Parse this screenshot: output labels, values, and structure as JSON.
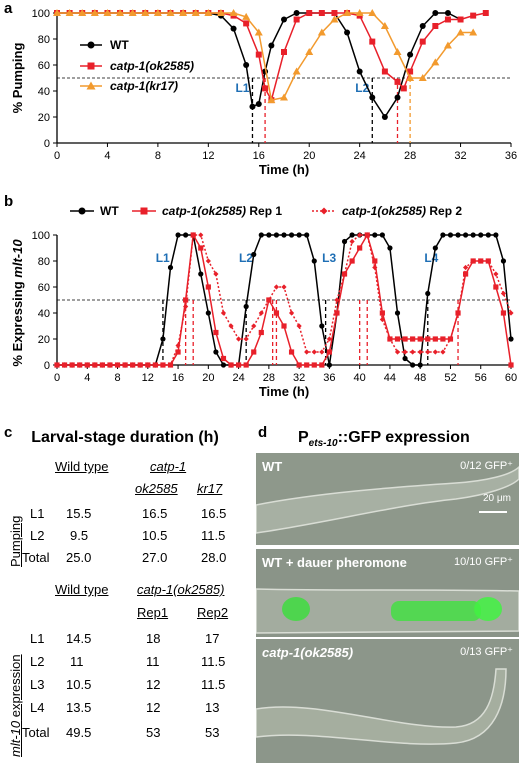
{
  "panels": {
    "a": "a",
    "b": "b",
    "c": "c",
    "d": "d"
  },
  "chart_data": [
    {
      "type": "line",
      "panel": "a",
      "xlabel": "Time (h)",
      "ylabel": "% Pumping",
      "xlim": [
        0,
        36
      ],
      "ylim": [
        0,
        100
      ],
      "xticks": [
        0,
        4,
        8,
        12,
        16,
        20,
        24,
        28,
        32,
        36
      ],
      "yticks": [
        0,
        20,
        40,
        60,
        80,
        100
      ],
      "reference_line": 50,
      "legend": "top-left",
      "series": [
        {
          "name": "WT",
          "color": "#000000",
          "marker": "circle",
          "x": [
            0,
            1,
            2,
            3,
            4,
            5,
            6,
            7,
            8,
            9,
            10,
            11,
            12,
            13,
            14,
            15,
            15.5,
            16,
            16.5,
            17,
            18,
            19,
            20,
            21,
            22,
            23,
            24,
            25,
            26,
            27,
            28,
            29,
            30,
            31,
            32
          ],
          "y": [
            100,
            100,
            100,
            100,
            100,
            100,
            100,
            100,
            100,
            100,
            100,
            100,
            100,
            98,
            88,
            60,
            28,
            30,
            55,
            75,
            95,
            100,
            100,
            100,
            100,
            85,
            55,
            35,
            20,
            35,
            68,
            90,
            100,
            100,
            95
          ]
        },
        {
          "name": "catp-1(ok2585)",
          "color": "#e8202a",
          "marker": "square",
          "x": [
            0,
            1,
            2,
            3,
            4,
            5,
            6,
            7,
            8,
            9,
            10,
            11,
            12,
            13,
            14,
            15,
            16,
            16.5,
            17,
            18,
            19,
            20,
            21,
            22,
            23,
            24,
            25,
            26,
            27,
            27.5,
            28,
            29,
            30,
            31,
            32,
            33,
            34
          ],
          "y": [
            100,
            100,
            100,
            100,
            100,
            100,
            100,
            100,
            100,
            100,
            100,
            100,
            100,
            100,
            98,
            92,
            68,
            42,
            33,
            70,
            95,
            100,
            100,
            100,
            100,
            98,
            78,
            55,
            47,
            42,
            55,
            78,
            90,
            95,
            95,
            98,
            100
          ]
        },
        {
          "name": "catp-1(kr17)",
          "color": "#f29a2e",
          "marker": "triangle",
          "x": [
            0,
            1,
            2,
            3,
            4,
            5,
            6,
            7,
            8,
            9,
            10,
            11,
            12,
            13,
            14,
            15,
            16,
            17,
            18,
            19,
            20,
            21,
            22,
            23,
            24,
            25,
            26,
            27,
            28,
            29,
            30,
            31,
            32,
            33
          ],
          "y": [
            100,
            100,
            100,
            100,
            100,
            100,
            100,
            100,
            100,
            100,
            100,
            100,
            100,
            100,
            100,
            97,
            85,
            33,
            35,
            55,
            70,
            85,
            95,
            100,
            100,
            100,
            90,
            70,
            50,
            50,
            62,
            75,
            85,
            85
          ]
        }
      ],
      "annotations": [
        {
          "text": "L1",
          "x": 15.5,
          "color": "#1f6fb5"
        },
        {
          "text": "L2",
          "x": 25,
          "color": "#1f6fb5"
        }
      ],
      "dashed_markers": [
        {
          "x": 15.5,
          "color": "#000000"
        },
        {
          "x": 16.5,
          "color": "#e8202a"
        },
        {
          "x": 25,
          "color": "#000000"
        },
        {
          "x": 27,
          "color": "#e8202a"
        },
        {
          "x": 28,
          "color": "#f29a2e"
        }
      ]
    },
    {
      "type": "line",
      "panel": "b",
      "xlabel": "Time (h)",
      "ylabel_prefix": "% Expressing ",
      "ylabel_gene": "mlt-10",
      "xlim": [
        0,
        60
      ],
      "ylim": [
        0,
        100
      ],
      "xticks": [
        0,
        4,
        8,
        12,
        16,
        20,
        24,
        28,
        32,
        36,
        40,
        44,
        48,
        52,
        56,
        60
      ],
      "yticks": [
        0,
        20,
        40,
        60,
        80,
        100
      ],
      "reference_line": 50,
      "legend": "top",
      "series": [
        {
          "name": "WT",
          "color": "#000000",
          "marker": "circle",
          "dash": false,
          "x": [
            0,
            1,
            2,
            3,
            4,
            5,
            6,
            7,
            8,
            9,
            10,
            11,
            12,
            13,
            14,
            15,
            16,
            17,
            18,
            19,
            20,
            21,
            22,
            23,
            24,
            25,
            26,
            27,
            28,
            29,
            30,
            31,
            32,
            33,
            34,
            35,
            36,
            37,
            38,
            39,
            40,
            41,
            42,
            43,
            44,
            45,
            46,
            47,
            48,
            49,
            50,
            51,
            52,
            53,
            54,
            55,
            56,
            57,
            58,
            59,
            60
          ],
          "y": [
            0,
            0,
            0,
            0,
            0,
            0,
            0,
            0,
            0,
            0,
            0,
            0,
            0,
            0,
            20,
            75,
            100,
            100,
            100,
            70,
            40,
            10,
            0,
            0,
            0,
            45,
            85,
            100,
            100,
            100,
            100,
            100,
            100,
            100,
            80,
            30,
            0,
            40,
            95,
            100,
            100,
            100,
            100,
            100,
            90,
            40,
            5,
            0,
            0,
            55,
            90,
            100,
            100,
            100,
            100,
            100,
            100,
            100,
            100,
            80,
            20
          ]
        },
        {
          "name": "catp-1(ok2585) Rep 1",
          "color": "#e8202a",
          "marker": "square",
          "dash": false,
          "x": [
            0,
            1,
            2,
            3,
            4,
            5,
            6,
            7,
            8,
            9,
            10,
            11,
            12,
            13,
            14,
            15,
            16,
            17,
            18,
            19,
            20,
            21,
            22,
            23,
            24,
            25,
            26,
            27,
            28,
            29,
            30,
            31,
            32,
            33,
            34,
            35,
            36,
            37,
            38,
            39,
            40,
            41,
            42,
            43,
            44,
            45,
            46,
            47,
            48,
            49,
            50,
            51,
            52,
            53,
            54,
            55,
            56,
            57,
            58,
            59,
            60
          ],
          "y": [
            0,
            0,
            0,
            0,
            0,
            0,
            0,
            0,
            0,
            0,
            0,
            0,
            0,
            0,
            0,
            0,
            10,
            50,
            100,
            90,
            60,
            25,
            5,
            0,
            0,
            0,
            10,
            25,
            50,
            40,
            30,
            10,
            0,
            0,
            0,
            0,
            10,
            40,
            70,
            80,
            90,
            100,
            80,
            40,
            20,
            20,
            20,
            20,
            20,
            20,
            20,
            20,
            20,
            40,
            70,
            80,
            80,
            80,
            60,
            40,
            0
          ]
        },
        {
          "name": "catp-1(ok2585) Rep 2",
          "color": "#e8202a",
          "marker": "diamond",
          "dash": true,
          "x": [
            0,
            1,
            2,
            3,
            4,
            5,
            6,
            7,
            8,
            9,
            10,
            11,
            12,
            13,
            14,
            15,
            16,
            17,
            18,
            19,
            20,
            21,
            22,
            23,
            24,
            25,
            26,
            27,
            28,
            29,
            30,
            31,
            32,
            33,
            34,
            35,
            36,
            37,
            38,
            39,
            40,
            41,
            42,
            43,
            44,
            45,
            46,
            47,
            48,
            49,
            50,
            51,
            52,
            53,
            54,
            55,
            56,
            57,
            58,
            59,
            60
          ],
          "y": [
            0,
            0,
            0,
            0,
            0,
            0,
            0,
            0,
            0,
            0,
            0,
            0,
            0,
            0,
            0,
            0,
            15,
            45,
            100,
            100,
            80,
            70,
            40,
            30,
            20,
            20,
            30,
            40,
            50,
            60,
            60,
            40,
            30,
            10,
            10,
            10,
            20,
            50,
            70,
            95,
            100,
            100,
            75,
            35,
            20,
            10,
            10,
            10,
            10,
            10,
            10,
            10,
            20,
            40,
            75,
            80,
            80,
            80,
            70,
            55,
            40
          ]
        }
      ],
      "annotations": [
        {
          "text": "L1",
          "x": 14.5,
          "color": "#1f6fb5"
        },
        {
          "text": "L2",
          "x": 25.5,
          "color": "#1f6fb5"
        },
        {
          "text": "L3",
          "x": 36.5,
          "color": "#1f6fb5"
        },
        {
          "text": "L4",
          "x": 50,
          "color": "#1f6fb5"
        }
      ],
      "dashed_markers": [
        {
          "x": 14,
          "color": "#000000"
        },
        {
          "x": 18,
          "color": "#e8202a"
        },
        {
          "x": 17,
          "color": "#e8202a"
        },
        {
          "x": 25,
          "color": "#000000"
        },
        {
          "x": 29,
          "color": "#e8202a"
        },
        {
          "x": 28.5,
          "color": "#e8202a"
        },
        {
          "x": 35.5,
          "color": "#000000"
        },
        {
          "x": 41,
          "color": "#e8202a"
        },
        {
          "x": 40,
          "color": "#e8202a"
        },
        {
          "x": 49,
          "color": "#000000"
        },
        {
          "x": 53,
          "color": "#e8202a"
        }
      ]
    },
    {
      "type": "table",
      "panel": "c",
      "title": "Larval-stage duration (h)",
      "pumping": {
        "side_label": "Pumping",
        "header_wt": "Wild type",
        "header_group": "catp-1",
        "header_cols": [
          "ok2585",
          "kr17"
        ],
        "rows": [
          {
            "label": "L1",
            "values": [
              "15.5",
              "16.5",
              "16.5"
            ]
          },
          {
            "label": "L2",
            "values": [
              "9.5",
              "10.5",
              "11.5"
            ]
          },
          {
            "label": "Total",
            "values": [
              "25.0",
              "27.0",
              "28.0"
            ]
          }
        ]
      },
      "mlt10": {
        "side_label_gene": "mlt-10",
        "side_label_rest": " expression",
        "header_wt": "Wild type",
        "header_group": "catp-1(ok2585)",
        "header_cols": [
          "Rep1",
          "Rep2"
        ],
        "rows": [
          {
            "label": "L1",
            "values": [
              "14.5",
              "18",
              "17"
            ]
          },
          {
            "label": "L2",
            "values": [
              "11",
              "11",
              "11.5"
            ]
          },
          {
            "label": "L3",
            "values": [
              "10.5",
              "12",
              "11.5"
            ]
          },
          {
            "label": "L4",
            "values": [
              "13.5",
              "12",
              "13"
            ]
          },
          {
            "label": "Total",
            "values": [
              "49.5",
              "53",
              "53"
            ]
          }
        ]
      }
    }
  ],
  "panel_d": {
    "title_base": "P",
    "title_sub": "ets-10",
    "title_rest": "::GFP expression",
    "images": [
      {
        "label": "WT",
        "count": "0/12 GFP⁺",
        "scale": "20 μm"
      },
      {
        "label": "WT + dauer pheromone",
        "count": "10/10 GFP⁺"
      },
      {
        "label": "catp-1(ok2585)",
        "count": "0/13 GFP⁺"
      }
    ]
  }
}
